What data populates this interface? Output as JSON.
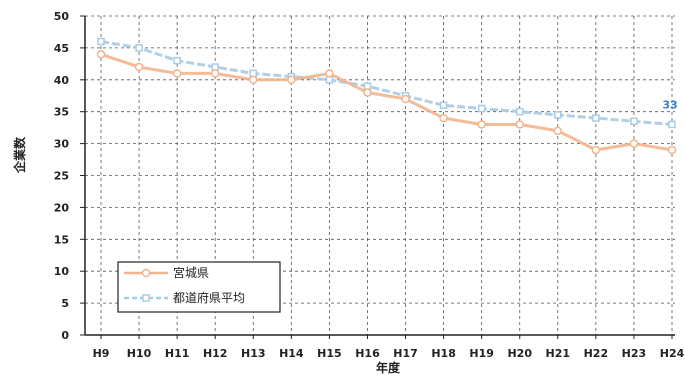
{
  "chart_data": {
    "type": "line",
    "categories": [
      "H9",
      "H10",
      "H11",
      "H12",
      "H13",
      "H14",
      "H15",
      "H16",
      "H17",
      "H18",
      "H19",
      "H20",
      "H21",
      "H22",
      "H23",
      "H24"
    ],
    "series": [
      {
        "name": "宮城県",
        "values": [
          44,
          42,
          41,
          41,
          40,
          40,
          41,
          38,
          37,
          34,
          33,
          33,
          32,
          29,
          30,
          29
        ],
        "color": "#f2b48c",
        "marker": "circle"
      },
      {
        "name": "都道府県平均",
        "values": [
          46,
          45,
          43,
          42,
          41,
          40.5,
          40,
          39,
          37.5,
          36,
          35.5,
          35,
          34.5,
          34,
          33.5,
          33
        ],
        "color": "#a9cbe6",
        "marker": "square"
      }
    ],
    "ylabel": "企業数",
    "xlabel": "年度",
    "ylim": [
      0,
      50
    ],
    "yticks": [
      0,
      5,
      10,
      15,
      20,
      25,
      30,
      35,
      40,
      45,
      50
    ],
    "grid": true,
    "legend_position": "bottom-left",
    "data_labels": [
      {
        "series": "都道府県平均",
        "category": "H24",
        "text": "33"
      }
    ]
  }
}
